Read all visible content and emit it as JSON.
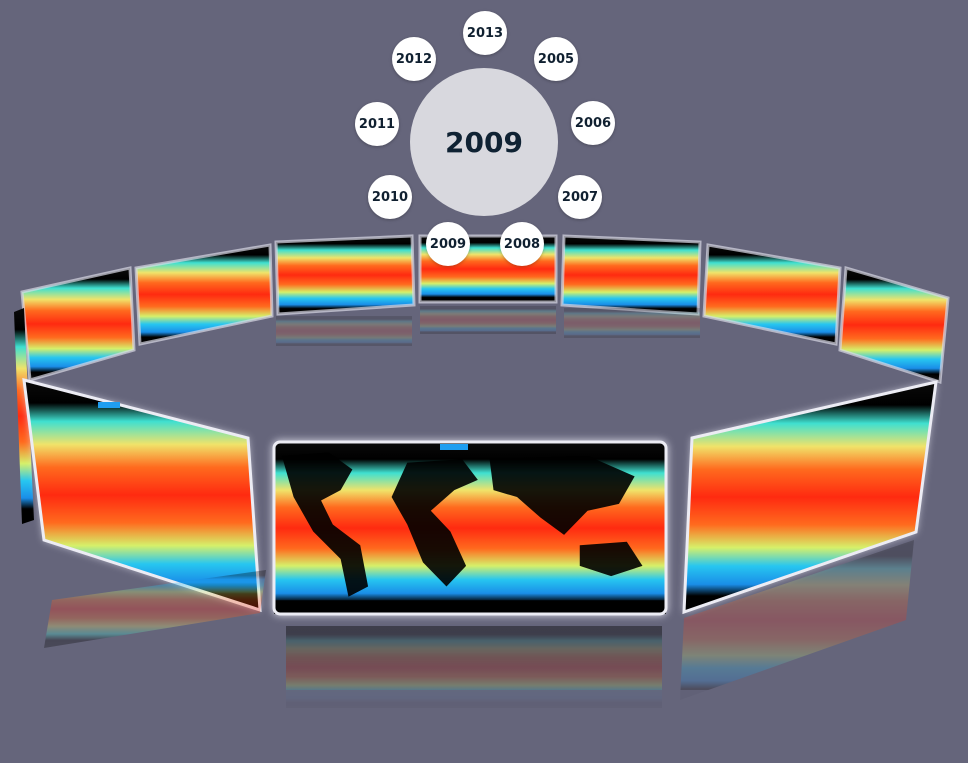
{
  "selector": {
    "current_year": "2009",
    "years": [
      "2013",
      "2005",
      "2006",
      "2007",
      "2008",
      "2009",
      "2010",
      "2011",
      "2012"
    ]
  },
  "colors": {
    "background": "#65657b",
    "year_button_bg": "#ffffff",
    "center_disc_bg": "#d8d8de",
    "label_text": "#102030"
  },
  "carousel": {
    "panel_count": 10,
    "panel_content": "global sea surface temperature map"
  }
}
